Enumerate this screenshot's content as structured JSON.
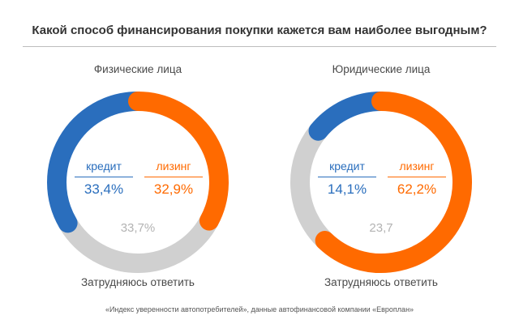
{
  "title": "Какой способ финансирования покупки кажется вам наиболее выгодным?",
  "source": "«Индекс уверенности автопотребителей», данные автофинансовой компании «Европлан»",
  "colors": {
    "credit": "#2a6ebd",
    "leasing": "#ff6a00",
    "unsure": "#d0d0d0"
  },
  "chart_data": [
    {
      "type": "pie",
      "title": "Физические лица",
      "categories": [
        "кредит",
        "лизинг",
        "Затрудняюсь ответить"
      ],
      "values": [
        33.4,
        32.9,
        33.7
      ],
      "value_labels": [
        "33,4%",
        "32,9%",
        "33,7%"
      ],
      "credit_label": "кредит",
      "leasing_label": "лизинг",
      "unsure_label": "Затрудняюсь ответить"
    },
    {
      "type": "pie",
      "title": "Юридические лица",
      "categories": [
        "кредит",
        "лизинг",
        "Затрудняюсь ответить"
      ],
      "values": [
        14.1,
        62.2,
        23.7
      ],
      "value_labels": [
        "14,1%",
        "62,2%",
        "23,7"
      ],
      "credit_label": "кредит",
      "leasing_label": "лизинг",
      "unsure_label": "Затрудняюсь ответить"
    }
  ]
}
